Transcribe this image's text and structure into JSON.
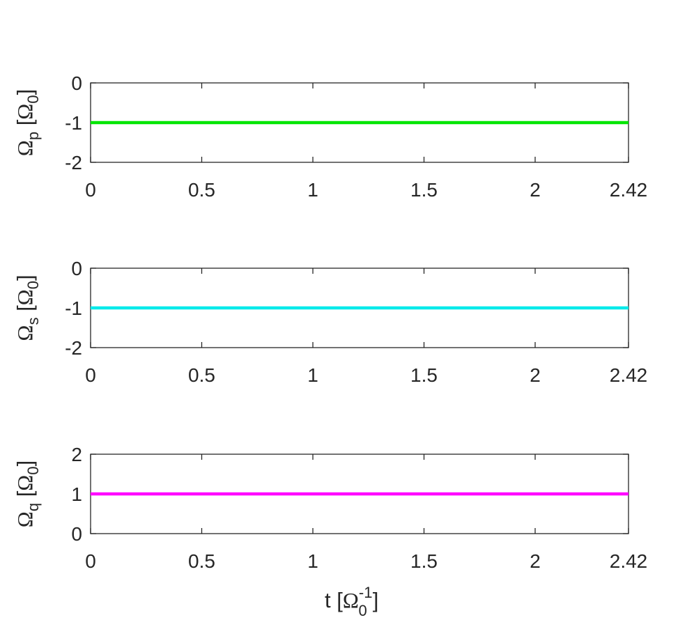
{
  "chart_data": [
    {
      "type": "line",
      "ylabel_symbol": "Ω",
      "ylabel_subscript": "p",
      "ylabel_unit_symbol": "Ω",
      "ylabel_unit_subscript": "0",
      "xlim": [
        0,
        2.42
      ],
      "ylim": [
        -2,
        0
      ],
      "xticks": [
        "0",
        "0.5",
        "1",
        "1.5",
        "2",
        "2.42"
      ],
      "yticks": [
        "0",
        "-1",
        "-2"
      ],
      "series": [
        {
          "x": [
            0,
            2.42
          ],
          "y": [
            -1,
            -1
          ],
          "color": "#00e600"
        }
      ]
    },
    {
      "type": "line",
      "ylabel_symbol": "Ω",
      "ylabel_subscript": "s",
      "ylabel_unit_symbol": "Ω",
      "ylabel_unit_subscript": "0",
      "xlim": [
        0,
        2.42
      ],
      "ylim": [
        -2,
        0
      ],
      "xticks": [
        "0",
        "0.5",
        "1",
        "1.5",
        "2",
        "2.42"
      ],
      "yticks": [
        "0",
        "-1",
        "-2"
      ],
      "series": [
        {
          "x": [
            0,
            2.42
          ],
          "y": [
            -1,
            -1
          ],
          "color": "#00eaea"
        }
      ]
    },
    {
      "type": "line",
      "ylabel_symbol": "Ω",
      "ylabel_subscript": "q",
      "ylabel_unit_symbol": "Ω",
      "ylabel_unit_subscript": "0",
      "xlim": [
        0,
        2.42
      ],
      "ylim": [
        0,
        2
      ],
      "xticks": [
        "0",
        "0.5",
        "1",
        "1.5",
        "2",
        "2.42"
      ],
      "yticks": [
        "2",
        "1",
        "0"
      ],
      "series": [
        {
          "x": [
            0,
            2.42
          ],
          "y": [
            1,
            1
          ],
          "color": "#ff00ff"
        }
      ],
      "xlabel_main": "t [",
      "xlabel_symbol": "Ω",
      "xlabel_superscript": "-1",
      "xlabel_subscript": "0",
      "xlabel_close": "]"
    }
  ]
}
